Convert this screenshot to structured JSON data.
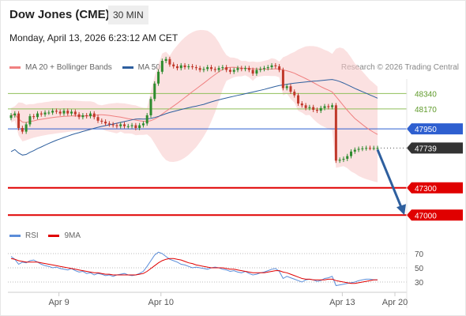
{
  "header": {
    "title": "Dow Jones (CME)",
    "timeframe": "30 MIN",
    "datetime": "Monday, April 13, 2026 6:23:12 AM CET"
  },
  "legend": {
    "items": [
      {
        "label": "MA 20 + Bollinger Bands",
        "color": "#f08080"
      },
      {
        "label": "MA 50",
        "color": "#2e5f9e"
      }
    ],
    "research": "Research © 2026 Trading Central"
  },
  "rsi_legend": {
    "items": [
      {
        "label": "RSI",
        "color": "#5b8dd9"
      },
      {
        "label": "9MA",
        "color": "#e00000"
      }
    ]
  },
  "colors": {
    "up": "#2e8b2e",
    "down": "#c0392b",
    "resistance_green": "#8fbf5a",
    "pivot_blue": "#2e5fd0",
    "support_red": "#e00000",
    "last_price": "#333333",
    "arrow": "#2e5f9e"
  },
  "chart_data": [
    {
      "type": "line",
      "title": "",
      "x": [
        "Apr 9",
        "Apr 10",
        "Apr 13",
        "Apr 20"
      ],
      "ylim": [
        46950,
        48500
      ],
      "levels": [
        {
          "value": 48340,
          "label": "48340",
          "kind": "resistance"
        },
        {
          "value": 48170,
          "label": "48170",
          "kind": "resistance"
        },
        {
          "value": 47950,
          "label": "47950",
          "kind": "pivot"
        },
        {
          "value": 47739,
          "label": "47739",
          "kind": "last"
        },
        {
          "value": 47300,
          "label": "47300",
          "kind": "support"
        },
        {
          "value": 47000,
          "label": "47000",
          "kind": "support"
        }
      ],
      "series": [
        {
          "name": "MA 20 + Bollinger Bands"
        },
        {
          "name": "MA 50"
        }
      ],
      "price_closes": [
        48100,
        48120,
        47960,
        47920,
        48000,
        48090,
        48080,
        48120,
        48110,
        48130,
        48130,
        48150,
        48140,
        48120,
        48150,
        48120,
        48140,
        48110,
        48080,
        48100,
        48090,
        48120,
        48080,
        48040,
        48030,
        48010,
        48000,
        47990,
        47980,
        48000,
        47980,
        47980,
        47990,
        47960,
        47990,
        48010,
        48100,
        48280,
        48450,
        48580,
        48700,
        48720,
        48660,
        48640,
        48620,
        48650,
        48630,
        48640,
        48630,
        48620,
        48600,
        48610,
        48630,
        48610,
        48600,
        48620,
        48630,
        48600,
        48580,
        48600,
        48620,
        48610,
        48620,
        48600,
        48560,
        48600,
        48610,
        48620,
        48630,
        48650,
        48640,
        48600,
        48400,
        48420,
        48360,
        48320,
        48230,
        48210,
        48180,
        48190,
        48160,
        48150,
        48180,
        48200,
        48190,
        48210,
        47600,
        47610,
        47620,
        47650,
        47700,
        47720,
        47730,
        47735,
        47740,
        47739,
        47739,
        47739
      ],
      "arrow_projection": {
        "from": 47739,
        "to": 47000
      }
    },
    {
      "type": "line",
      "title": "",
      "ylim": [
        20,
        80
      ],
      "yticks": [
        30,
        50,
        70
      ],
      "series": [
        {
          "name": "RSI"
        },
        {
          "name": "9MA"
        }
      ],
      "rsi": [
        66,
        62,
        55,
        58,
        57,
        60,
        61,
        58,
        55,
        53,
        52,
        50,
        51,
        49,
        48,
        47,
        49,
        46,
        44,
        45,
        42,
        43,
        40,
        42,
        41,
        39,
        40,
        38,
        40,
        41,
        42,
        40,
        39,
        40,
        42,
        45,
        52,
        60,
        68,
        72,
        70,
        66,
        62,
        60,
        58,
        55,
        54,
        52,
        50,
        51,
        50,
        49,
        48,
        50,
        51,
        50,
        48,
        47,
        45,
        46,
        44,
        43,
        45,
        42,
        40,
        41,
        43,
        44,
        46,
        48,
        49,
        45,
        35,
        38,
        36,
        34,
        32,
        30,
        33,
        34,
        33,
        31,
        32,
        35,
        36,
        38,
        25,
        26,
        27,
        28,
        29,
        30,
        32,
        33,
        34,
        34,
        33,
        33
      ],
      "ma9": [
        63,
        62,
        60,
        59,
        58,
        58,
        58,
        58,
        57,
        56,
        55,
        54,
        53,
        52,
        51,
        50,
        49,
        48,
        47,
        46,
        45,
        44,
        43,
        43,
        42,
        41,
        41,
        40,
        40,
        40,
        40,
        40,
        40,
        40,
        41,
        42,
        45,
        49,
        53,
        57,
        60,
        62,
        63,
        63,
        62,
        61,
        59,
        57,
        56,
        54,
        53,
        52,
        51,
        50,
        50,
        50,
        50,
        49,
        48,
        48,
        47,
        46,
        45,
        44,
        43,
        43,
        43,
        43,
        44,
        45,
        46,
        46,
        44,
        43,
        41,
        39,
        37,
        35,
        34,
        34,
        33,
        33,
        33,
        33,
        34,
        34,
        32,
        31,
        30,
        29,
        28,
        28,
        29,
        30,
        31,
        32,
        33,
        33
      ]
    }
  ],
  "xaxis": {
    "ticks": [
      {
        "label": "Apr 9",
        "index": 11
      },
      {
        "label": "Apr 10",
        "index": 38
      },
      {
        "label": "Apr 13",
        "index": 86
      },
      {
        "label": "Apr 20",
        "index": 97
      }
    ]
  }
}
